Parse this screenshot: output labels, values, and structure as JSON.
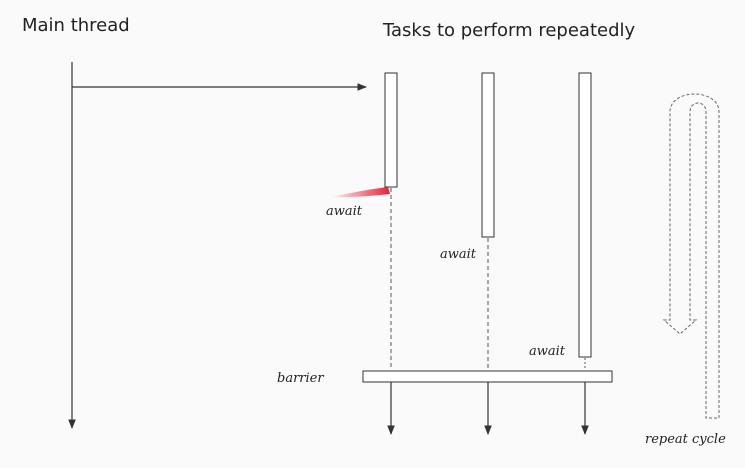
{
  "diagram": {
    "main_thread_label": "Main thread",
    "tasks_label": "Tasks to perform repeatedly",
    "await_labels": [
      "await",
      "await",
      "await"
    ],
    "barrier_label": "barrier",
    "repeat_label": "repeat cycle",
    "colors": {
      "line": "#333333",
      "dashed": "#555555",
      "accent": "#e8203a",
      "background": "#fafafa"
    }
  }
}
